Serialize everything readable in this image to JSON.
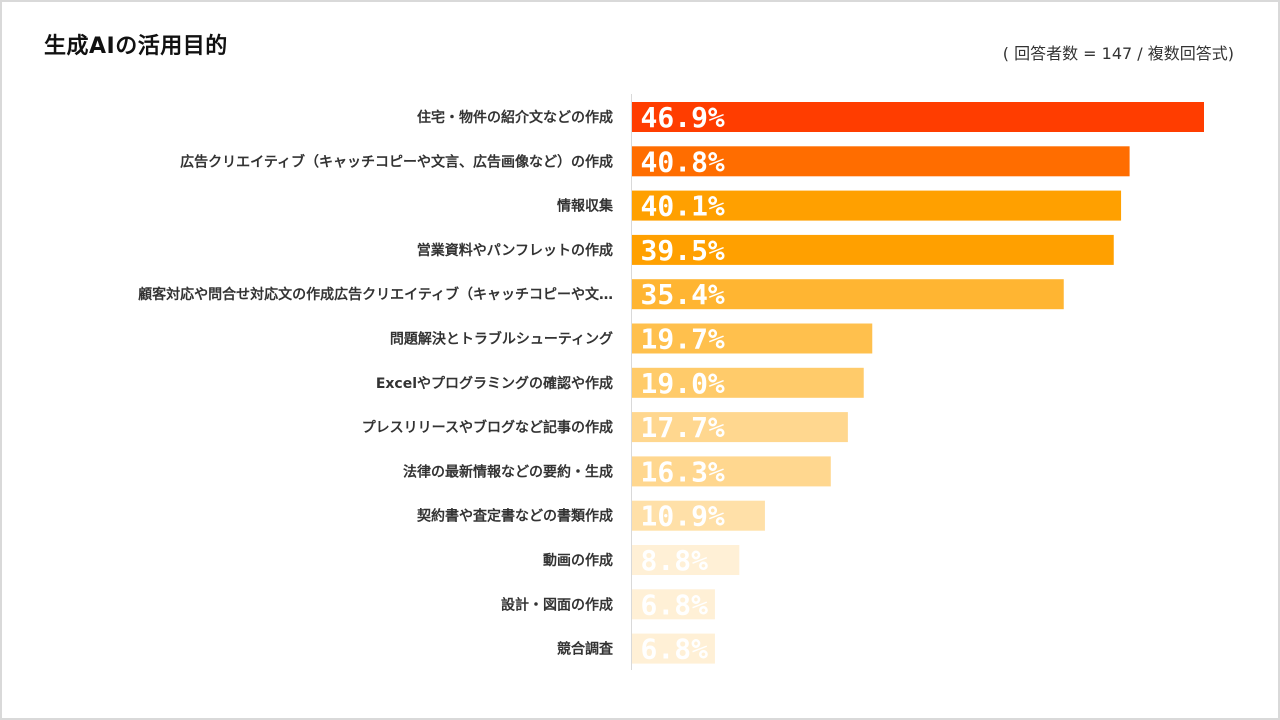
{
  "title": "生成AIの活用目的",
  "note": "( 回答者数 = 147 / 複数回答式)",
  "chart_data": {
    "type": "bar",
    "orientation": "horizontal",
    "unit": "%",
    "xlim": [
      0,
      46.9
    ],
    "grid": false,
    "categories": [
      "住宅・物件の紹介文などの作成",
      "広告クリエイティブ（キャッチコピーや文言、広告画像など）の作成",
      "情報収集",
      "営業資料やパンフレットの作成",
      "顧客対応や問合せ対応文の作成広告クリエイティブ（キャッチコピーや文…",
      "問題解決とトラブルシューティング",
      "Excelやプログラミングの確認や作成",
      "プレスリリースやブログなど記事の作成",
      "法律の最新情報などの要約・生成",
      "契約書や査定書などの書類作成",
      "動画の作成",
      "設計・図面の作成",
      "競合調査"
    ],
    "values": [
      46.9,
      40.8,
      40.1,
      39.5,
      35.4,
      19.7,
      19.0,
      17.7,
      16.3,
      10.9,
      8.8,
      6.8,
      6.8
    ],
    "value_labels": [
      "46.9%",
      "40.8%",
      "40.1%",
      "39.5%",
      "35.4%",
      "19.7%",
      "19.0%",
      "17.7%",
      "16.3%",
      "10.9%",
      "8.8%",
      "6.8%",
      "6.8%"
    ],
    "colors": [
      "#FF3D00",
      "#FF6D00",
      "#FFA000",
      "#FFA000",
      "#FFB532",
      "#FFC04D",
      "#FFCB6A",
      "#FFD78F",
      "#FFD78F",
      "#FFE0A8",
      "#FFF0D6",
      "#FFF0D6",
      "#FFF0D6"
    ]
  }
}
